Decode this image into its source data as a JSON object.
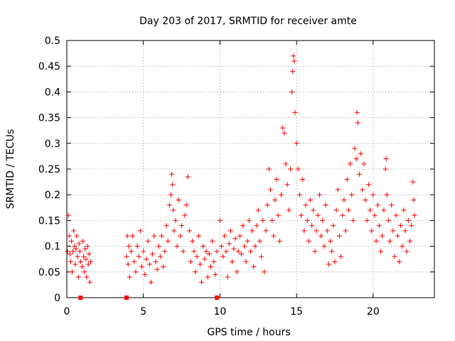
{
  "chart_data": {
    "type": "scatter",
    "title": "Day 203 of 2017, SRMTID for receiver amte",
    "xlabel": "GPS time / hours",
    "ylabel": "SRMTID / TECUs",
    "xlim": [
      0,
      24
    ],
    "ylim": [
      0,
      0.5
    ],
    "xticks": [
      0,
      5,
      10,
      15,
      20
    ],
    "yticks": [
      0,
      0.05,
      0.1,
      0.15,
      0.2,
      0.25,
      0.3,
      0.35,
      0.4,
      0.45,
      0.5
    ],
    "xtick_labels": [
      "0",
      "5",
      "10",
      "15",
      "20"
    ],
    "ytick_labels": [
      "0",
      "0.05",
      "0.1",
      "0.15",
      "0.2",
      "0.25",
      "0.3",
      "0.35",
      "0.4",
      "0.45",
      "0.5"
    ],
    "grid": true,
    "marker": "+",
    "color": "#ff0000",
    "zero_markers": [
      0.9,
      3.9,
      9.8
    ],
    "series": [
      {
        "name": "SRMTID",
        "points": [
          [
            0.05,
            0.09
          ],
          [
            0.1,
            0.16
          ],
          [
            0.15,
            0.12
          ],
          [
            0.2,
            0.085
          ],
          [
            0.25,
            0.07
          ],
          [
            0.3,
            0.11
          ],
          [
            0.35,
            0.05
          ],
          [
            0.4,
            0.09
          ],
          [
            0.45,
            0.13
          ],
          [
            0.5,
            0.1
          ],
          [
            0.55,
            0.065
          ],
          [
            0.6,
            0.095
          ],
          [
            0.65,
            0.12
          ],
          [
            0.7,
            0.08
          ],
          [
            0.75,
            0.04
          ],
          [
            0.8,
            0.105
          ],
          [
            0.85,
            0.09
          ],
          [
            0.9,
            0.07
          ],
          [
            1.0,
            0.06
          ],
          [
            1.05,
            0.11
          ],
          [
            1.1,
            0.08
          ],
          [
            1.15,
            0.05
          ],
          [
            1.2,
            0.095
          ],
          [
            1.25,
            0.075
          ],
          [
            1.3,
            0.04
          ],
          [
            1.35,
            0.1
          ],
          [
            1.4,
            0.065
          ],
          [
            1.45,
            0.085
          ],
          [
            1.5,
            0.03
          ],
          [
            1.55,
            0.07
          ],
          [
            3.9,
            0.08
          ],
          [
            3.95,
            0.12
          ],
          [
            4.0,
            0.065
          ],
          [
            4.05,
            0.1
          ],
          [
            4.1,
            0.04
          ],
          [
            4.2,
            0.09
          ],
          [
            4.3,
            0.12
          ],
          [
            4.4,
            0.07
          ],
          [
            4.5,
            0.05
          ],
          [
            4.6,
            0.1
          ],
          [
            4.7,
            0.08
          ],
          [
            4.8,
            0.13
          ],
          [
            4.9,
            0.06
          ],
          [
            5.0,
            0.09
          ],
          [
            5.1,
            0.045
          ],
          [
            5.2,
            0.075
          ],
          [
            5.3,
            0.11
          ],
          [
            5.4,
            0.065
          ],
          [
            5.5,
            0.03
          ],
          [
            5.6,
            0.085
          ],
          [
            5.7,
            0.12
          ],
          [
            5.8,
            0.07
          ],
          [
            5.9,
            0.055
          ],
          [
            6.0,
            0.1
          ],
          [
            6.1,
            0.08
          ],
          [
            6.2,
            0.12
          ],
          [
            6.3,
            0.06
          ],
          [
            6.4,
            0.09
          ],
          [
            6.5,
            0.14
          ],
          [
            6.6,
            0.11
          ],
          [
            6.7,
            0.18
          ],
          [
            6.8,
            0.2
          ],
          [
            6.85,
            0.24
          ],
          [
            6.9,
            0.22
          ],
          [
            6.95,
            0.17
          ],
          [
            7.0,
            0.13
          ],
          [
            7.1,
            0.15
          ],
          [
            7.2,
            0.1
          ],
          [
            7.3,
            0.19
          ],
          [
            7.4,
            0.12
          ],
          [
            7.5,
            0.14
          ],
          [
            7.6,
            0.09
          ],
          [
            7.7,
            0.16
          ],
          [
            7.8,
            0.18
          ],
          [
            7.9,
            0.235
          ],
          [
            8.0,
            0.13
          ],
          [
            8.1,
            0.07
          ],
          [
            8.2,
            0.11
          ],
          [
            8.3,
            0.09
          ],
          [
            8.4,
            0.05
          ],
          [
            8.5,
            0.08
          ],
          [
            8.6,
            0.12
          ],
          [
            8.7,
            0.065
          ],
          [
            8.8,
            0.03
          ],
          [
            8.9,
            0.1
          ],
          [
            9.0,
            0.075
          ],
          [
            9.1,
            0.09
          ],
          [
            9.2,
            0.04
          ],
          [
            9.3,
            0.085
          ],
          [
            9.4,
            0.06
          ],
          [
            9.5,
            0.11
          ],
          [
            9.6,
            0.07
          ],
          [
            9.7,
            0.045
          ],
          [
            9.8,
            0.09
          ],
          [
            10.0,
            0.15
          ],
          [
            10.1,
            0.1
          ],
          [
            10.2,
            0.08
          ],
          [
            10.3,
            0.12
          ],
          [
            10.4,
            0.09
          ],
          [
            10.5,
            0.04
          ],
          [
            10.6,
            0.105
          ],
          [
            10.7,
            0.13
          ],
          [
            10.8,
            0.07
          ],
          [
            10.9,
            0.095
          ],
          [
            11.0,
            0.115
          ],
          [
            11.1,
            0.05
          ],
          [
            11.2,
            0.09
          ],
          [
            11.3,
            0.12
          ],
          [
            11.4,
            0.085
          ],
          [
            11.5,
            0.14
          ],
          [
            11.6,
            0.1
          ],
          [
            11.7,
            0.07
          ],
          [
            11.8,
            0.11
          ],
          [
            11.9,
            0.15
          ],
          [
            12.0,
            0.09
          ],
          [
            12.1,
            0.13
          ],
          [
            12.2,
            0.06
          ],
          [
            12.3,
            0.1
          ],
          [
            12.4,
            0.14
          ],
          [
            12.5,
            0.17
          ],
          [
            12.6,
            0.11
          ],
          [
            12.7,
            0.08
          ],
          [
            12.8,
            0.15
          ],
          [
            12.9,
            0.05
          ],
          [
            13.0,
            0.13
          ],
          [
            13.1,
            0.18
          ],
          [
            13.2,
            0.25
          ],
          [
            13.3,
            0.21
          ],
          [
            13.4,
            0.15
          ],
          [
            13.5,
            0.12
          ],
          [
            13.6,
            0.19
          ],
          [
            13.7,
            0.23
          ],
          [
            13.8,
            0.16
          ],
          [
            13.9,
            0.11
          ],
          [
            14.0,
            0.2
          ],
          [
            14.1,
            0.33
          ],
          [
            14.2,
            0.32
          ],
          [
            14.3,
            0.26
          ],
          [
            14.4,
            0.22
          ],
          [
            14.5,
            0.17
          ],
          [
            14.6,
            0.25
          ],
          [
            14.7,
            0.4
          ],
          [
            14.75,
            0.44
          ],
          [
            14.8,
            0.47
          ],
          [
            14.85,
            0.46
          ],
          [
            14.9,
            0.36
          ],
          [
            15.0,
            0.3
          ],
          [
            15.1,
            0.25
          ],
          [
            15.2,
            0.2
          ],
          [
            15.3,
            0.16
          ],
          [
            15.4,
            0.23
          ],
          [
            15.5,
            0.13
          ],
          [
            15.6,
            0.18
          ],
          [
            15.7,
            0.15
          ],
          [
            15.8,
            0.11
          ],
          [
            15.9,
            0.19
          ],
          [
            16.0,
            0.14
          ],
          [
            16.1,
            0.17
          ],
          [
            16.2,
            0.09
          ],
          [
            16.3,
            0.13
          ],
          [
            16.4,
            0.16
          ],
          [
            16.5,
            0.2
          ],
          [
            16.6,
            0.12
          ],
          [
            16.7,
            0.15
          ],
          [
            16.8,
            0.1
          ],
          [
            16.9,
            0.18
          ],
          [
            17.0,
            0.13
          ],
          [
            17.1,
            0.065
          ],
          [
            17.2,
            0.11
          ],
          [
            17.3,
            0.09
          ],
          [
            17.4,
            0.14
          ],
          [
            17.5,
            0.07
          ],
          [
            17.6,
            0.17
          ],
          [
            17.7,
            0.21
          ],
          [
            17.8,
            0.12
          ],
          [
            17.9,
            0.08
          ],
          [
            18.0,
            0.16
          ],
          [
            18.1,
            0.19
          ],
          [
            18.2,
            0.13
          ],
          [
            18.3,
            0.23
          ],
          [
            18.4,
            0.17
          ],
          [
            18.5,
            0.26
          ],
          [
            18.6,
            0.2
          ],
          [
            18.7,
            0.15
          ],
          [
            18.8,
            0.29
          ],
          [
            18.9,
            0.27
          ],
          [
            18.95,
            0.36
          ],
          [
            19.0,
            0.34
          ],
          [
            19.1,
            0.24
          ],
          [
            19.2,
            0.28
          ],
          [
            19.3,
            0.21
          ],
          [
            19.4,
            0.26
          ],
          [
            19.5,
            0.19
          ],
          [
            19.6,
            0.15
          ],
          [
            19.7,
            0.22
          ],
          [
            19.8,
            0.17
          ],
          [
            19.9,
            0.13
          ],
          [
            20.0,
            0.2
          ],
          [
            20.1,
            0.16
          ],
          [
            20.2,
            0.11
          ],
          [
            20.3,
            0.18
          ],
          [
            20.4,
            0.14
          ],
          [
            20.5,
            0.09
          ],
          [
            20.6,
            0.12
          ],
          [
            20.7,
            0.17
          ],
          [
            20.8,
            0.25
          ],
          [
            20.85,
            0.27
          ],
          [
            20.9,
            0.2
          ],
          [
            21.0,
            0.15
          ],
          [
            21.1,
            0.11
          ],
          [
            21.2,
            0.18
          ],
          [
            21.3,
            0.13
          ],
          [
            21.4,
            0.08
          ],
          [
            21.5,
            0.16
          ],
          [
            21.6,
            0.12
          ],
          [
            21.7,
            0.07
          ],
          [
            21.8,
            0.14
          ],
          [
            21.9,
            0.1
          ],
          [
            22.0,
            0.17
          ],
          [
            22.1,
            0.13
          ],
          [
            22.2,
            0.09
          ],
          [
            22.3,
            0.15
          ],
          [
            22.4,
            0.11
          ],
          [
            22.5,
            0.14
          ],
          [
            22.6,
            0.225
          ],
          [
            22.65,
            0.19
          ],
          [
            22.7,
            0.16
          ]
        ]
      }
    ]
  }
}
